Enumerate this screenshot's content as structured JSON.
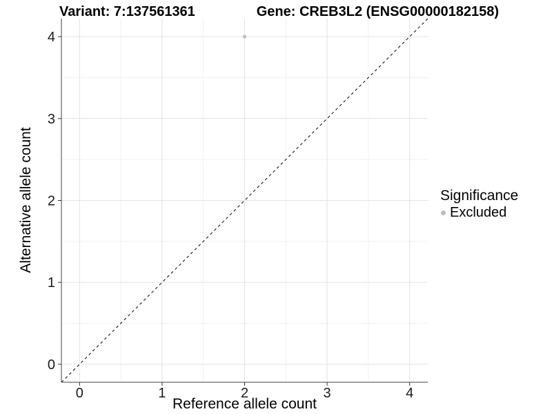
{
  "titles": {
    "variant": "Variant: 7:137561361",
    "gene": "Gene: CREB3L2 (ENSG00000182158)"
  },
  "axes": {
    "x_title": "Reference allele count",
    "y_title": "Alternative allele count"
  },
  "legend": {
    "title": "Significance",
    "position": "right",
    "items": [
      {
        "label": "Excluded",
        "color": "#bdbdbd",
        "marker": "circle-icon"
      }
    ]
  },
  "colors": {
    "background": "#ffffff",
    "point": "#bdbdbd",
    "grid_major": "#e3e3e3",
    "grid_minor": "#f1f1f1",
    "axis_line": "#404040",
    "tick_mark": "#333333",
    "tick_label": "#1a1a1a",
    "reference_line": "#000000"
  },
  "chart_data": {
    "type": "scatter",
    "title": "Variant: 7:137561361   |   Gene: CREB3L2 (ENSG00000182158)",
    "xlabel": "Reference allele count",
    "ylabel": "Alternative allele count",
    "xlim": [
      -0.22,
      4.22
    ],
    "ylim": [
      -0.22,
      4.22
    ],
    "x_ticks": [
      0,
      1,
      2,
      3,
      4
    ],
    "y_ticks": [
      0,
      1,
      2,
      3,
      4
    ],
    "x_minor_ticks": [
      0.5,
      1.5,
      2.5,
      3.5
    ],
    "y_minor_ticks": [
      0.5,
      1.5,
      2.5,
      3.5
    ],
    "grid": "major+minor",
    "legend_position": "right",
    "series": [
      {
        "name": "Excluded",
        "color": "#bdbdbd",
        "points": [
          {
            "x": 2,
            "y": 4
          }
        ]
      }
    ],
    "reference_line": {
      "slope": 1,
      "intercept": 0,
      "style": "dashed"
    }
  }
}
